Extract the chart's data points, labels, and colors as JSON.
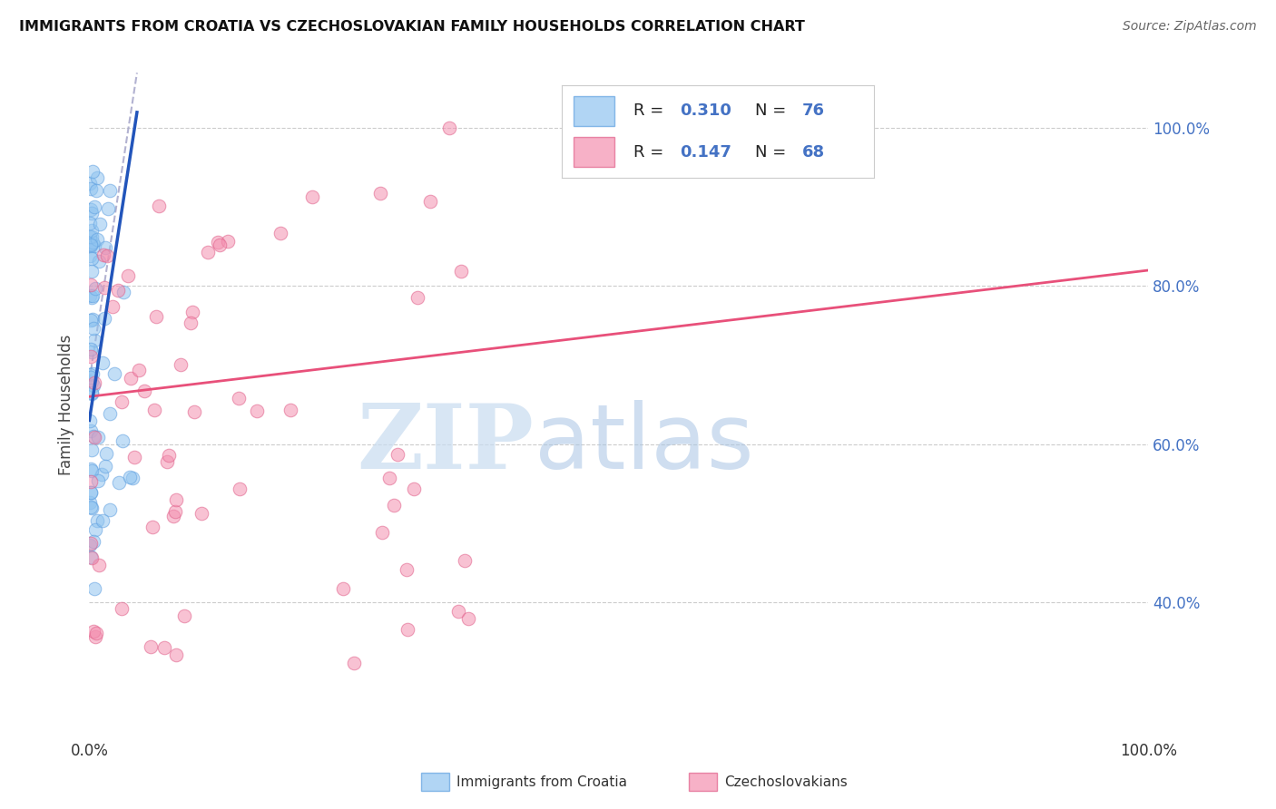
{
  "title": "IMMIGRANTS FROM CROATIA VS CZECHOSLOVAKIAN FAMILY HOUSEHOLDS CORRELATION CHART",
  "source": "Source: ZipAtlas.com",
  "ylabel": "Family Households",
  "right_ytick_labels": [
    "40.0%",
    "60.0%",
    "80.0%",
    "100.0%"
  ],
  "right_ytick_vals": [
    40,
    60,
    80,
    100
  ],
  "xlim": [
    0,
    100
  ],
  "ylim": [
    23,
    107
  ],
  "blue_color": "#90C4F0",
  "blue_edge": "#60A0E0",
  "blue_line_color": "#2255BB",
  "pink_color": "#F490B0",
  "pink_edge": "#E0608A",
  "pink_line_color": "#E8507A",
  "gray_dash_color": "#AAAACC",
  "R_blue": "0.310",
  "N_blue": "76",
  "R_pink": "0.147",
  "N_pink": "68",
  "label_blue": "Immigrants from Croatia",
  "label_pink": "Czechoslovakians",
  "watermark_zip": "ZIP",
  "watermark_atlas": "atlas",
  "bg_color": "#ffffff",
  "tick_color": "#4472C4",
  "grid_color": "#CCCCCC",
  "scatter_alpha": 0.55,
  "scatter_size": 110,
  "blue_line_x0": 0.0,
  "blue_line_x1": 4.5,
  "blue_line_y0": 63.0,
  "blue_line_y1": 102.0,
  "blue_dash_x0": 0.0,
  "blue_dash_x1": 4.5,
  "blue_dash_y0": 68.0,
  "blue_dash_y1": 107.0,
  "pink_line_x0": 0.0,
  "pink_line_x1": 100.0,
  "pink_line_y0": 66.0,
  "pink_line_y1": 82.0
}
